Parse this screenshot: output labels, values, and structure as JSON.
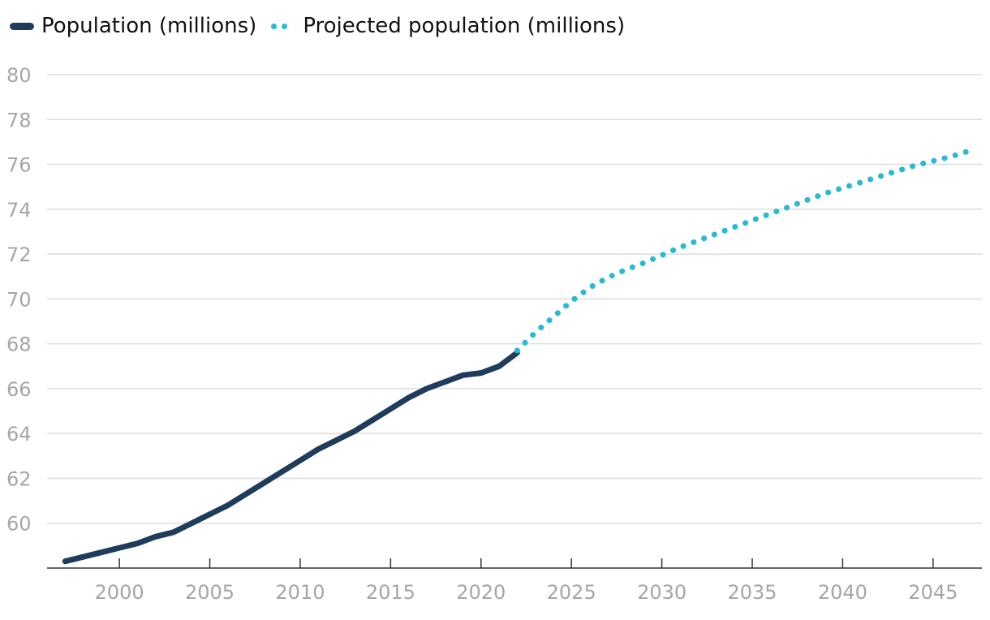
{
  "legend": {
    "series_1": "Population (millions)",
    "series_2": "Projected population (millions)"
  },
  "colors": {
    "actual": "#1f3c5c",
    "projected": "#2ab9d1",
    "grid": "#dddddd",
    "axis": "#333333",
    "tick_text": "#a6a6a6"
  },
  "chart_data": {
    "type": "line",
    "title": "",
    "xlabel": "",
    "ylabel": "",
    "xlim": [
      1996,
      2047.7
    ],
    "ylim": [
      58,
      80
    ],
    "grid": true,
    "legend_position": "top-left",
    "x_ticks": [
      2000,
      2005,
      2010,
      2015,
      2020,
      2025,
      2030,
      2035,
      2040,
      2045
    ],
    "y_ticks": [
      60,
      62,
      64,
      66,
      68,
      70,
      72,
      74,
      76,
      78,
      80
    ],
    "series": [
      {
        "name": "Population (millions)",
        "style": "solid",
        "x": [
          1997,
          1998,
          1999,
          2000,
          2001,
          2002,
          2003,
          2004,
          2005,
          2006,
          2007,
          2008,
          2009,
          2010,
          2011,
          2012,
          2013,
          2014,
          2015,
          2016,
          2017,
          2018,
          2019,
          2020,
          2021,
          2022
        ],
        "y": [
          58.3,
          58.5,
          58.7,
          58.9,
          59.1,
          59.4,
          59.6,
          60.0,
          60.4,
          60.8,
          61.3,
          61.8,
          62.3,
          62.8,
          63.3,
          63.7,
          64.1,
          64.6,
          65.1,
          65.6,
          66.0,
          66.3,
          66.6,
          66.7,
          67.0,
          67.6
        ]
      },
      {
        "name": "Projected population (millions)",
        "style": "dotted",
        "x": [
          2022,
          2023,
          2024,
          2025,
          2026,
          2027,
          2028,
          2029,
          2030,
          2031,
          2032,
          2033,
          2034,
          2035,
          2036,
          2037,
          2038,
          2039,
          2040,
          2041,
          2042,
          2043,
          2044,
          2045,
          2046,
          2047
        ],
        "y": [
          67.7,
          68.5,
          69.2,
          69.9,
          70.5,
          70.95,
          71.3,
          71.6,
          71.95,
          72.3,
          72.6,
          72.9,
          73.2,
          73.5,
          73.8,
          74.1,
          74.4,
          74.7,
          74.95,
          75.2,
          75.45,
          75.7,
          75.95,
          76.15,
          76.35,
          76.6
        ]
      }
    ]
  }
}
